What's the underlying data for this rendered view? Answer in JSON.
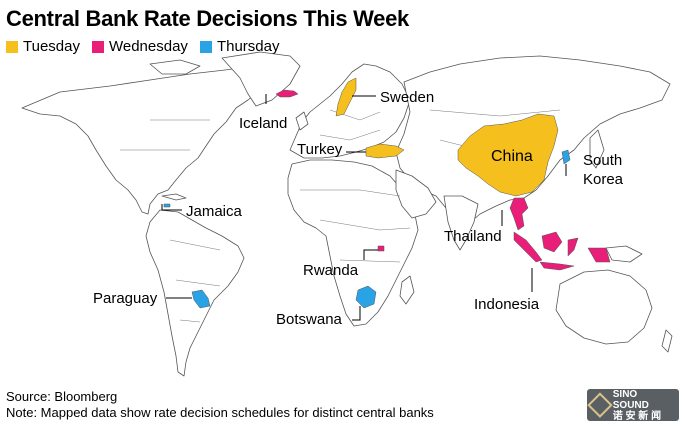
{
  "title": "Central Bank Rate Decisions This Week",
  "legend": [
    {
      "label": "Tuesday",
      "color": "#F5C01D"
    },
    {
      "label": "Wednesday",
      "color": "#E91E78"
    },
    {
      "label": "Thursday",
      "color": "#2AA3E6"
    }
  ],
  "countries": [
    {
      "name": "Sweden",
      "day": "Tuesday"
    },
    {
      "name": "Turkey",
      "day": "Tuesday"
    },
    {
      "name": "China",
      "day": "Tuesday"
    },
    {
      "name": "Iceland",
      "day": "Wednesday"
    },
    {
      "name": "Rwanda",
      "day": "Wednesday"
    },
    {
      "name": "Thailand",
      "day": "Wednesday"
    },
    {
      "name": "Indonesia",
      "day": "Wednesday"
    },
    {
      "name": "South Korea",
      "day": "Thursday"
    },
    {
      "name": "Paraguay",
      "day": "Thursday"
    },
    {
      "name": "Botswana",
      "day": "Thursday"
    },
    {
      "name": "Jamaica",
      "day": "Thursday"
    }
  ],
  "labels": {
    "sweden": "Sweden",
    "iceland": "Iceland",
    "turkey": "Turkey",
    "china": "China",
    "south": "South",
    "korea": "Korea",
    "jamaica": "Jamaica",
    "thailand": "Thailand",
    "rwanda": "Rwanda",
    "paraguay": "Paraguay",
    "botswana": "Botswana",
    "indonesia": "Indonesia"
  },
  "source": "Source: Bloomberg",
  "note": "Note: Mapped data show rate decision schedules for distinct central banks",
  "logo": {
    "line1": "SINO SOUND",
    "line2": "诺 安 新 闻"
  }
}
